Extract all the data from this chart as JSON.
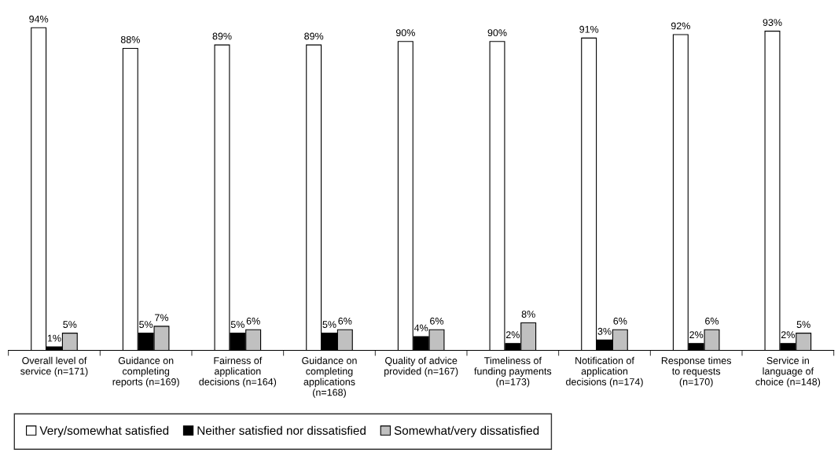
{
  "chart_data": {
    "type": "bar",
    "categories": [
      "Overall level of\nservice (n=171)",
      "Guidance on\ncompleting\nreports (n=169)",
      "Fairness of\napplication\ndecisions (n=164)",
      "Guidance on\ncompleting\napplications\n(n=168)",
      "Quality of advice\nprovided (n=167)",
      "Timeliness of\nfunding payments\n(n=173)",
      "Notification of\napplication\ndecisions (n=174)",
      "Response times\nto requests\n(n=170)",
      "Service in\nlanguage of\nchoice (n=148)"
    ],
    "series": [
      {
        "name": "Very/somewhat satisfied",
        "color": "#ffffff",
        "values": [
          94,
          88,
          89,
          89,
          90,
          90,
          91,
          92,
          93
        ],
        "value_labels": [
          "94%",
          "88%",
          "89%",
          "89%",
          "90%",
          "90%",
          "91%",
          "92%",
          "93%"
        ]
      },
      {
        "name": "Neither satisfied nor dissatisfied",
        "color": "#000000",
        "values": [
          1,
          5,
          5,
          5,
          4,
          2,
          3,
          2,
          2
        ],
        "value_labels": [
          "1%",
          "5%",
          "5%",
          "5%",
          "4%",
          "2%",
          "3%",
          "2%",
          "2%"
        ]
      },
      {
        "name": "Somewhat/very dissatisfied",
        "color": "#c0c0c0",
        "values": [
          5,
          7,
          6,
          6,
          6,
          8,
          6,
          6,
          5
        ],
        "value_labels": [
          "5%",
          "7%",
          "6%",
          "6%",
          "6%",
          "8%",
          "6%",
          "6%",
          "5%"
        ]
      }
    ],
    "legend": "bottom"
  }
}
